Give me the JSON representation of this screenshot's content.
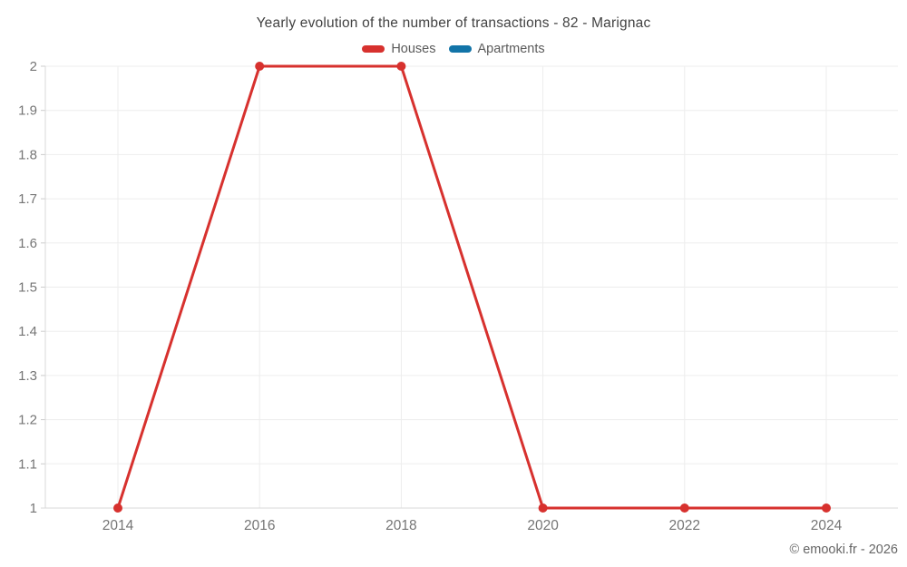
{
  "chart_data": {
    "type": "line",
    "title": "Yearly evolution of the number of transactions - 82 - Marignac",
    "xlabel": "",
    "ylabel": "",
    "ylim": [
      1,
      2
    ],
    "x_range": [
      2014,
      2024
    ],
    "grid": true,
    "legend_position": "top",
    "x_ticks": [
      2014,
      2016,
      2018,
      2020,
      2022,
      2024
    ],
    "x_tick_labels": [
      "2014",
      "2016",
      "2018",
      "2020",
      "2022",
      "2024"
    ],
    "y_ticks": [
      1,
      1.1,
      1.2,
      1.3,
      1.4,
      1.5,
      1.6,
      1.7,
      1.8,
      1.9,
      2
    ],
    "y_tick_labels": [
      "1",
      "1.1",
      "1.2",
      "1.3",
      "1.4",
      "1.5",
      "1.6",
      "1.7",
      "1.8",
      "1.9",
      "2"
    ],
    "x": [
      2014,
      2016,
      2018,
      2020,
      2022,
      2024
    ],
    "series": [
      {
        "name": "Houses",
        "color": "#d7312e",
        "values": [
          1,
          2,
          2,
          1,
          1,
          1
        ]
      },
      {
        "name": "Apartments",
        "color": "#1274a8",
        "values": []
      }
    ]
  },
  "watermark": "© emooki.fr - 2026"
}
